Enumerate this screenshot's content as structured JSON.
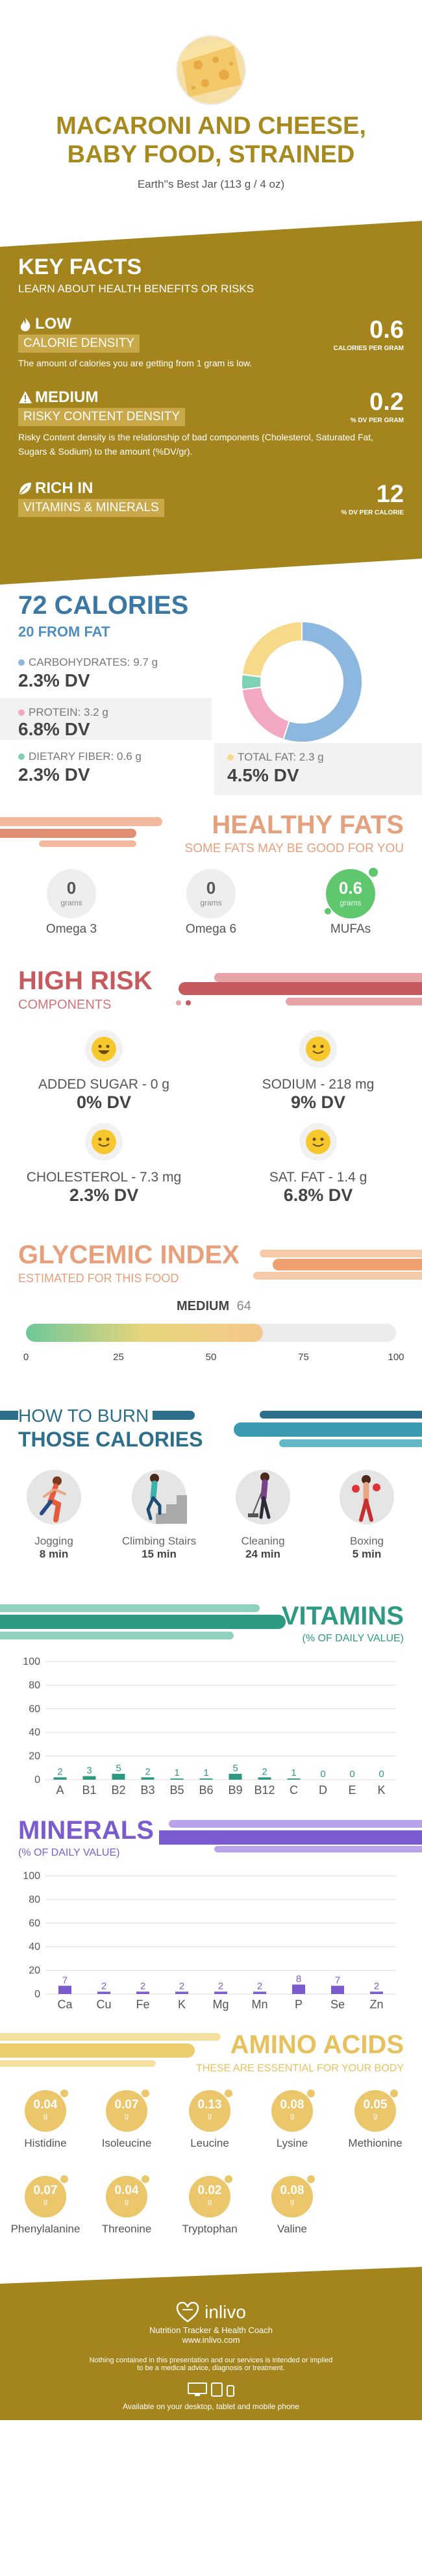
{
  "header": {
    "title_line1": "MACARONI AND CHEESE,",
    "title_line2": "BABY FOOD, STRAINED",
    "serving": "Earth''s Best Jar (113 g / 4 oz)"
  },
  "key_facts": {
    "title": "KEY FACTS",
    "subtitle": "LEARN ABOUT HEALTH BENEFITS OR RISKS",
    "items": [
      {
        "badge_top": "LOW",
        "badge_bottom": "CALORIE DENSITY",
        "desc": "The amount of calories you are getting from 1 gram is low.",
        "value": "0.6",
        "unit": "CALORIES PER GRAM",
        "icon": "flame-icon"
      },
      {
        "badge_top": "MEDIUM",
        "badge_bottom": "RISKY CONTENT DENSITY",
        "desc": "Risky Content density is the relationship of bad components (Cholesterol, Saturated Fat, Sugars & Sodium) to the amount (%DV/gr).",
        "value": "0.2",
        "unit": "% DV PER GRAM",
        "icon": "warning-icon"
      },
      {
        "badge_top": "RICH IN",
        "badge_bottom": "VITAMINS & MINERALS",
        "desc": "",
        "value": "12",
        "unit": "% DV PER CALORIE",
        "icon": "leaf-icon"
      }
    ]
  },
  "calories": {
    "title": "72 CALORIES",
    "subtitle": "20 FROM FAT",
    "nutrients": [
      {
        "label": "CARBOHYDRATES: 9.7 g",
        "dv": "2.3% DV",
        "color": "#8cb8e0"
      },
      {
        "label": "PROTEIN: 3.2 g",
        "dv": "6.8% DV",
        "color": "#f2a7c3"
      },
      {
        "label": "DIETARY FIBER: 0.6 g",
        "dv": "2.3% DV",
        "color": "#7fd1b4"
      },
      {
        "label": "TOTAL FAT: 2.3 g",
        "dv": "4.5% DV",
        "color": "#f7d98a"
      }
    ],
    "donut": [
      {
        "name": "carbohydrates",
        "value": 55,
        "color": "#8cb8e0"
      },
      {
        "name": "protein",
        "value": 18,
        "color": "#f2a7c3"
      },
      {
        "name": "fiber",
        "value": 4,
        "color": "#7fd1b4"
      },
      {
        "name": "fat",
        "value": 23,
        "color": "#f7d98a"
      }
    ]
  },
  "healthy_fats": {
    "title": "HEALTHY FATS",
    "subtitle": "SOME FATS MAY BE GOOD FOR YOU",
    "items": [
      {
        "value": "0",
        "unit": "grams",
        "label": "Omega 3"
      },
      {
        "value": "0",
        "unit": "grams",
        "label": "Omega 6"
      },
      {
        "value": "0.6",
        "unit": "grams",
        "label": "MUFAs"
      }
    ]
  },
  "high_risk": {
    "title": "HIGH RISK",
    "subtitle": "COMPONENTS",
    "items": [
      {
        "label": "ADDED SUGAR - 0 g",
        "dv": "0% DV"
      },
      {
        "label": "SODIUM - 218 mg",
        "dv": "9% DV"
      },
      {
        "label": "CHOLESTEROL - 7.3 mg",
        "dv": "2.3% DV"
      },
      {
        "label": "SAT. FAT - 1.4 g",
        "dv": "6.8% DV"
      }
    ]
  },
  "glycemic": {
    "title": "GLYCEMIC INDEX",
    "subtitle": "ESTIMATED FOR THIS FOOD",
    "level": "MEDIUM",
    "value": "64",
    "value_num": 64,
    "ticks": [
      "0",
      "25",
      "50",
      "75",
      "100"
    ]
  },
  "burn": {
    "title_line1": "HOW TO BURN",
    "title_line2": "THOSE CALORIES",
    "items": [
      {
        "label": "Jogging",
        "time": "8 min",
        "icon": "jogging-icon"
      },
      {
        "label": "Climbing Stairs",
        "time": "15 min",
        "icon": "stairs-icon"
      },
      {
        "label": "Cleaning",
        "time": "24 min",
        "icon": "cleaning-icon"
      },
      {
        "label": "Boxing",
        "time": "5 min",
        "icon": "boxing-icon"
      }
    ]
  },
  "vitamins": {
    "title": "VITAMINS",
    "subtitle": "(% OF DAILY VALUE)",
    "color": "#2f9a83"
  },
  "minerals": {
    "title": "MINERALS",
    "subtitle": "(% OF DAILY VALUE)",
    "color": "#7b5ccf"
  },
  "amino": {
    "title": "AMINO ACIDS",
    "subtitle": "THESE ARE ESSENTIAL FOR YOUR BODY",
    "items": [
      {
        "value": "0.04",
        "unit": "g",
        "label": "Histidine"
      },
      {
        "value": "0.07",
        "unit": "g",
        "label": "Isoleucine"
      },
      {
        "value": "0.13",
        "unit": "g",
        "label": "Leucine"
      },
      {
        "value": "0.08",
        "unit": "g",
        "label": "Lysine"
      },
      {
        "value": "0.05",
        "unit": "g",
        "label": "Methionine"
      },
      {
        "value": "0.07",
        "unit": "g",
        "label": "Phenylalanine"
      },
      {
        "value": "0.04",
        "unit": "g",
        "label": "Threonine"
      },
      {
        "value": "0.02",
        "unit": "g",
        "label": "Tryptophan"
      },
      {
        "value": "0.08",
        "unit": "g",
        "label": "Valine"
      }
    ]
  },
  "footer": {
    "brand": "inlivo",
    "tagline": "Nutrition Tracker & Health Coach",
    "url": "www.inlivo.com",
    "disclaimer_line1": "Nothing contained in this presentation and our services is intended or implied",
    "disclaimer_line2": "to be a medical advice, diagnosis or treatment.",
    "available": "Available on your desktop, tablet and mobile phone"
  },
  "chart_data": [
    {
      "type": "bar",
      "title": "VITAMINS",
      "subtitle": "(% OF DAILY VALUE)",
      "categories": [
        "A",
        "B1",
        "B2",
        "B3",
        "B5",
        "B6",
        "B9",
        "B12",
        "C",
        "D",
        "E",
        "K"
      ],
      "values": [
        2,
        3,
        5,
        2,
        1,
        1,
        5,
        2,
        1,
        0,
        0,
        0
      ],
      "yticks": [
        "0",
        "20",
        "40",
        "60",
        "80",
        "100"
      ],
      "ylim": [
        0,
        100
      ]
    },
    {
      "type": "bar",
      "title": "MINERALS",
      "subtitle": "(% OF DAILY VALUE)",
      "categories": [
        "Ca",
        "Cu",
        "Fe",
        "K",
        "Mg",
        "Mn",
        "P",
        "Se",
        "Zn"
      ],
      "values": [
        7,
        2,
        2,
        2,
        2,
        2,
        8,
        7,
        2
      ],
      "yticks": [
        "0",
        "20",
        "40",
        "60",
        "80",
        "100"
      ],
      "ylim": [
        0,
        100
      ]
    }
  ]
}
